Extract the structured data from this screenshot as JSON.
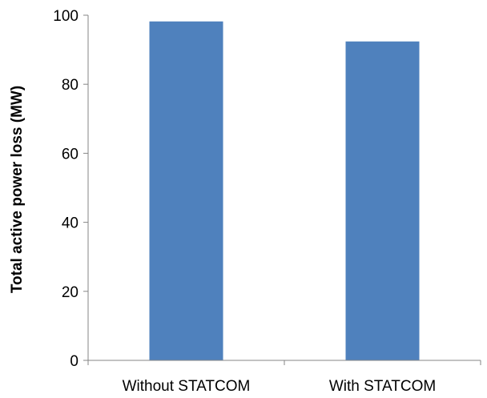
{
  "chart_data": {
    "type": "bar",
    "categories": [
      "Without STATCOM",
      "With STATCOM"
    ],
    "values": [
      98.2,
      92.4
    ],
    "title": "",
    "xlabel": "",
    "ylabel": "Total active power loss (MW)",
    "ylim": [
      0,
      100
    ],
    "yticks": [
      "0",
      "20",
      "40",
      "60",
      "80",
      "100"
    ],
    "grid": false,
    "legend": "none",
    "bar_color": "#4f81bd"
  }
}
